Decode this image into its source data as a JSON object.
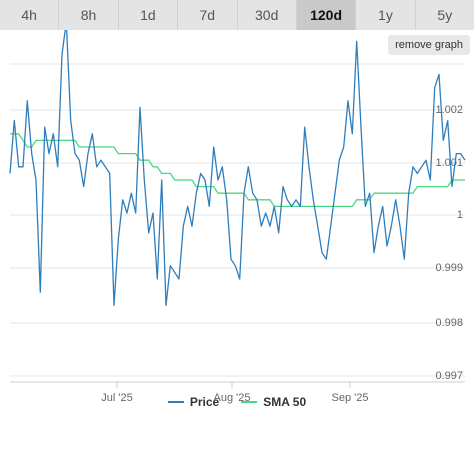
{
  "tabs": [
    {
      "label": "4h",
      "active": false
    },
    {
      "label": "8h",
      "active": false
    },
    {
      "label": "1d",
      "active": false
    },
    {
      "label": "7d",
      "active": false
    },
    {
      "label": "30d",
      "active": false
    },
    {
      "label": "120d",
      "active": true
    },
    {
      "label": "1y",
      "active": false
    },
    {
      "label": "5y",
      "active": false
    }
  ],
  "remove_graph_label": "remove graph",
  "colors": {
    "price": "#2f7ebc",
    "sma": "#49d882",
    "grid": "#e6e6e6"
  },
  "chart_data": {
    "type": "line",
    "x_ticks": [
      "Jul '25",
      "Aug '25",
      "Sep '25"
    ],
    "y_ticks": [
      "0.997",
      "0.998",
      "0.999",
      "1",
      "1.001",
      "1.002"
    ],
    "ylim": [
      0.997,
      1.0025
    ],
    "grid": true,
    "legend_position": "bottom",
    "series": [
      {
        "name": "Price",
        "values": [
          1.0001,
          1.0009,
          1.0002,
          1.0002,
          1.0012,
          1.0004,
          1.0,
          0.9983,
          1.0008,
          1.0004,
          1.0007,
          1.0002,
          1.0019,
          1.0024,
          1.0009,
          1.0004,
          1.0003,
          0.9999,
          1.0004,
          1.0007,
          1.0002,
          1.0003,
          1.0002,
          1.0001,
          0.9981,
          0.9991,
          0.9997,
          0.9995,
          0.9998,
          0.9995,
          1.0011,
          1.0,
          0.9992,
          0.9995,
          0.9985,
          1.0,
          0.9981,
          0.9987,
          0.9986,
          0.9985,
          0.9993,
          0.9996,
          0.9993,
          0.9998,
          1.0001,
          1.0,
          0.9996,
          1.0005,
          1.0,
          1.0002,
          0.9997,
          0.9988,
          0.9987,
          0.9985,
          0.9998,
          1.0002,
          0.9998,
          0.9997,
          0.9993,
          0.9995,
          0.9993,
          0.9996,
          0.9992,
          0.9999,
          0.9997,
          0.9996,
          0.9997,
          0.9996,
          1.0008,
          1.0002,
          0.9997,
          0.9993,
          0.9989,
          0.9988,
          0.9993,
          0.9998,
          1.0003,
          1.0005,
          1.0012,
          1.0007,
          1.0021,
          1.0008,
          0.9996,
          0.9998,
          0.9989,
          0.9993,
          0.9996,
          0.999,
          0.9993,
          0.9997,
          0.9993,
          0.9988,
          0.9998,
          1.0002,
          1.0001,
          1.0002,
          1.0003,
          1.0,
          1.0014,
          1.0016,
          1.0006,
          1.0009,
          0.9999,
          1.0004,
          1.0004,
          1.0003
        ]
      },
      {
        "name": "SMA 50",
        "values": [
          1.0007,
          1.0007,
          1.0007,
          1.0006,
          1.0005,
          1.0005,
          1.0006,
          1.0006,
          1.0006,
          1.0006,
          1.0006,
          1.0006,
          1.0006,
          1.0006,
          1.0006,
          1.0006,
          1.0005,
          1.0005,
          1.0005,
          1.0005,
          1.0005,
          1.0005,
          1.0005,
          1.0005,
          1.0005,
          1.0004,
          1.0004,
          1.0004,
          1.0004,
          1.0004,
          1.0003,
          1.0003,
          1.0003,
          1.0002,
          1.0002,
          1.0001,
          1.0001,
          1.0001,
          1.0,
          1.0,
          1.0,
          1.0,
          1.0,
          0.9999,
          0.9999,
          0.9999,
          0.9999,
          0.9999,
          0.9998,
          0.9998,
          0.9998,
          0.9998,
          0.9998,
          0.9998,
          0.9998,
          0.9997,
          0.9997,
          0.9997,
          0.9997,
          0.9997,
          0.9997,
          0.9996,
          0.9996,
          0.9996,
          0.9996,
          0.9996,
          0.9996,
          0.9996,
          0.9996,
          0.9996,
          0.9996,
          0.9996,
          0.9996,
          0.9996,
          0.9996,
          0.9996,
          0.9996,
          0.9996,
          0.9996,
          0.9996,
          0.9997,
          0.9997,
          0.9997,
          0.9997,
          0.9998,
          0.9998,
          0.9998,
          0.9998,
          0.9998,
          0.9998,
          0.9998,
          0.9998,
          0.9998,
          0.9998,
          0.9999,
          0.9999,
          0.9999,
          0.9999,
          0.9999,
          0.9999,
          0.9999,
          0.9999,
          1.0,
          1.0,
          1.0,
          1.0
        ]
      }
    ]
  }
}
